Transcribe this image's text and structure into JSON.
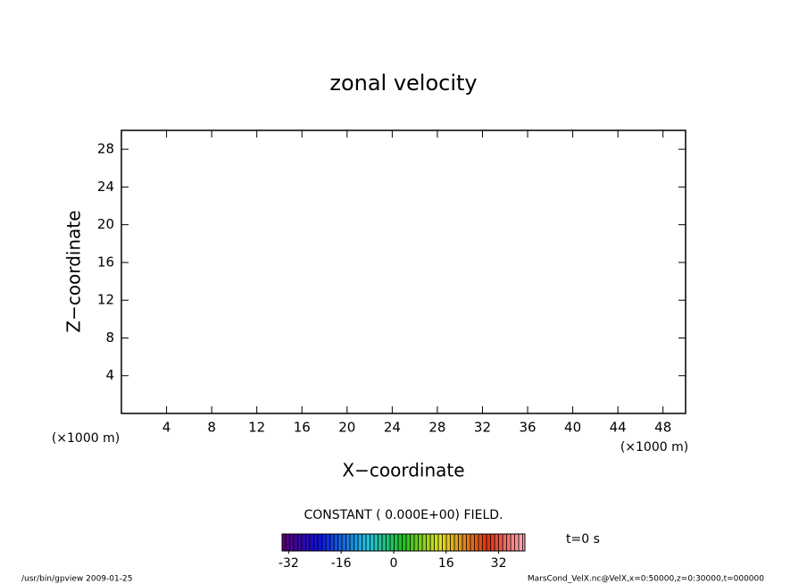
{
  "chart_data": {
    "type": "contour",
    "title": "zonal velocity",
    "xlabel": "X−coordinate",
    "ylabel": "Z−coordinate",
    "xunit": "(×1000 m)",
    "yunit": "(×1000 m)",
    "xlim": [
      0,
      50
    ],
    "xticks": [
      4,
      8,
      12,
      16,
      20,
      24,
      28,
      32,
      36,
      40,
      44,
      48
    ],
    "ylim": [
      0,
      30
    ],
    "yticks": [
      4,
      8,
      12,
      16,
      20,
      24,
      28
    ],
    "annotation": "CONSTANT ( 0.000E+00) FIELD.",
    "time_label": "t=0 s",
    "colorbar": {
      "clim": [
        -34,
        40
      ],
      "ticks": [
        -32,
        -16,
        0,
        16,
        32
      ]
    },
    "footer_left": "/usr/bin/gpview   2009-01-25",
    "footer_right": "MarsCond_VelX.nc@VelX,x=0:50000,z=0:30000,t=000000"
  }
}
